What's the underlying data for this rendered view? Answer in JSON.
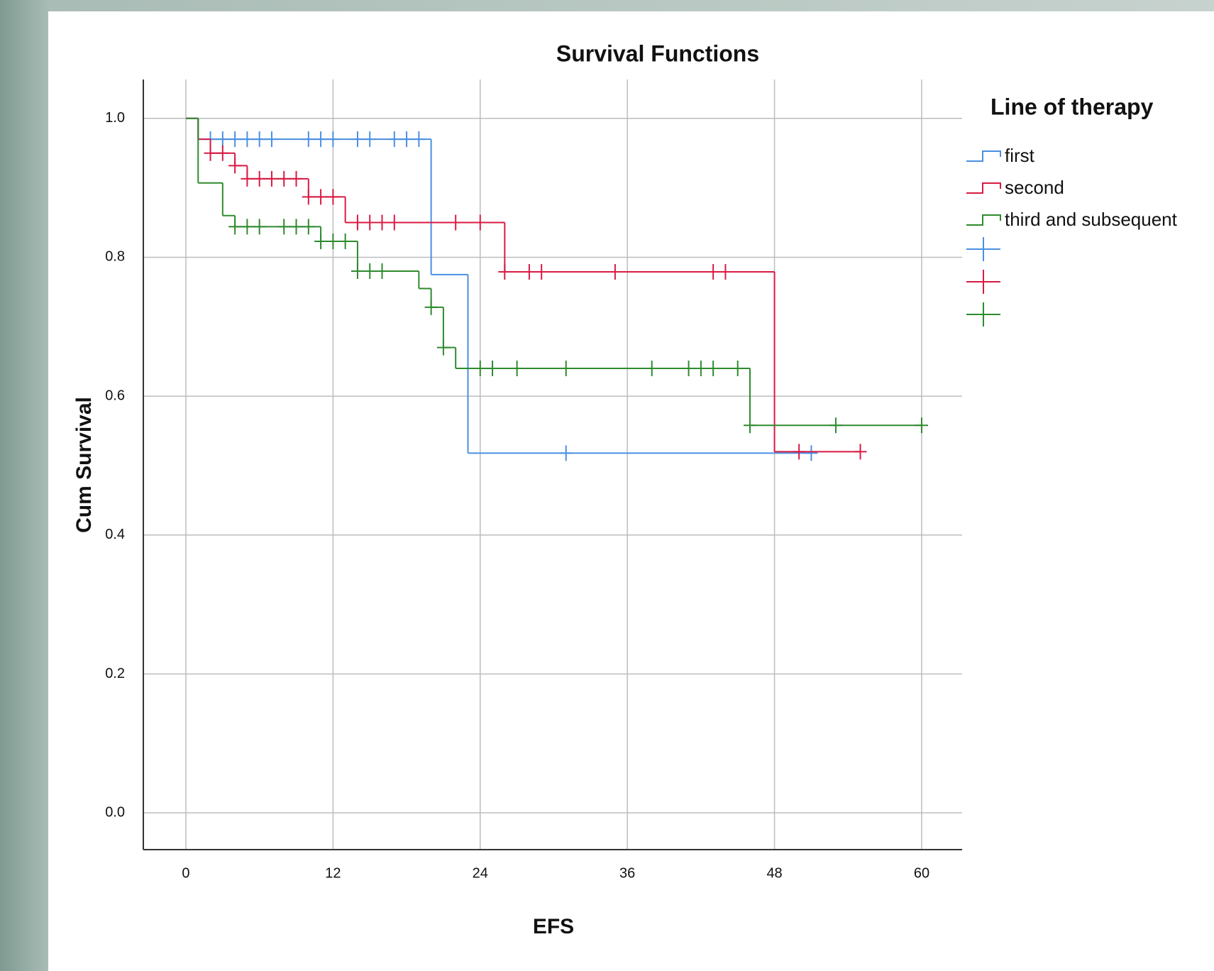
{
  "chart_data": {
    "type": "survival",
    "title": "Survival Functions",
    "xlabel": "EFS",
    "ylabel": "Cum Survival",
    "legend_title": "Line of therapy",
    "xlim": [
      -3.47,
      63.3
    ],
    "ylim": [
      -0.053,
      1.056
    ],
    "xticks": [
      0,
      12,
      24,
      36,
      48,
      60
    ],
    "yticks": [
      {
        "value": 0,
        "label": "0.0"
      },
      0.2,
      0.4,
      0.6,
      0.8,
      {
        "value": 1,
        "label": "1.0"
      }
    ],
    "grid": true,
    "series": [
      {
        "name": "first",
        "color": "#4a90e2",
        "times": [
          0,
          1,
          20,
          23
        ],
        "survival": [
          1.0,
          0.97,
          0.775,
          0.518
        ],
        "censor_times": [
          2,
          3,
          4,
          5,
          6,
          7,
          10,
          11,
          12,
          14,
          15,
          17,
          18,
          19,
          31,
          51
        ]
      },
      {
        "name": "second",
        "color": "#d81b43",
        "times": [
          0,
          1,
          2,
          4,
          5,
          10,
          13,
          26,
          48
        ],
        "survival": [
          1.0,
          0.97,
          0.95,
          0.932,
          0.913,
          0.887,
          0.85,
          0.779,
          0.52
        ],
        "censor_times": [
          2,
          3,
          4,
          5,
          6,
          7,
          8,
          9,
          10,
          11,
          12,
          14,
          15,
          16,
          17,
          22,
          24,
          26,
          28,
          29,
          35,
          43,
          44,
          50,
          55
        ]
      },
      {
        "name": "third and subsequent",
        "color": "#2e8b2e",
        "times": [
          0,
          1,
          3,
          4,
          11,
          14,
          19,
          20,
          21,
          22,
          46
        ],
        "survival": [
          1.0,
          0.907,
          0.86,
          0.844,
          0.823,
          0.78,
          0.755,
          0.728,
          0.67,
          0.64,
          0.558
        ],
        "censor_times": [
          4,
          5,
          6,
          8,
          9,
          10,
          11,
          12,
          13,
          14,
          15,
          16,
          20,
          21,
          24,
          25,
          27,
          31,
          38,
          41,
          42,
          43,
          45,
          46,
          53,
          60
        ]
      }
    ]
  }
}
